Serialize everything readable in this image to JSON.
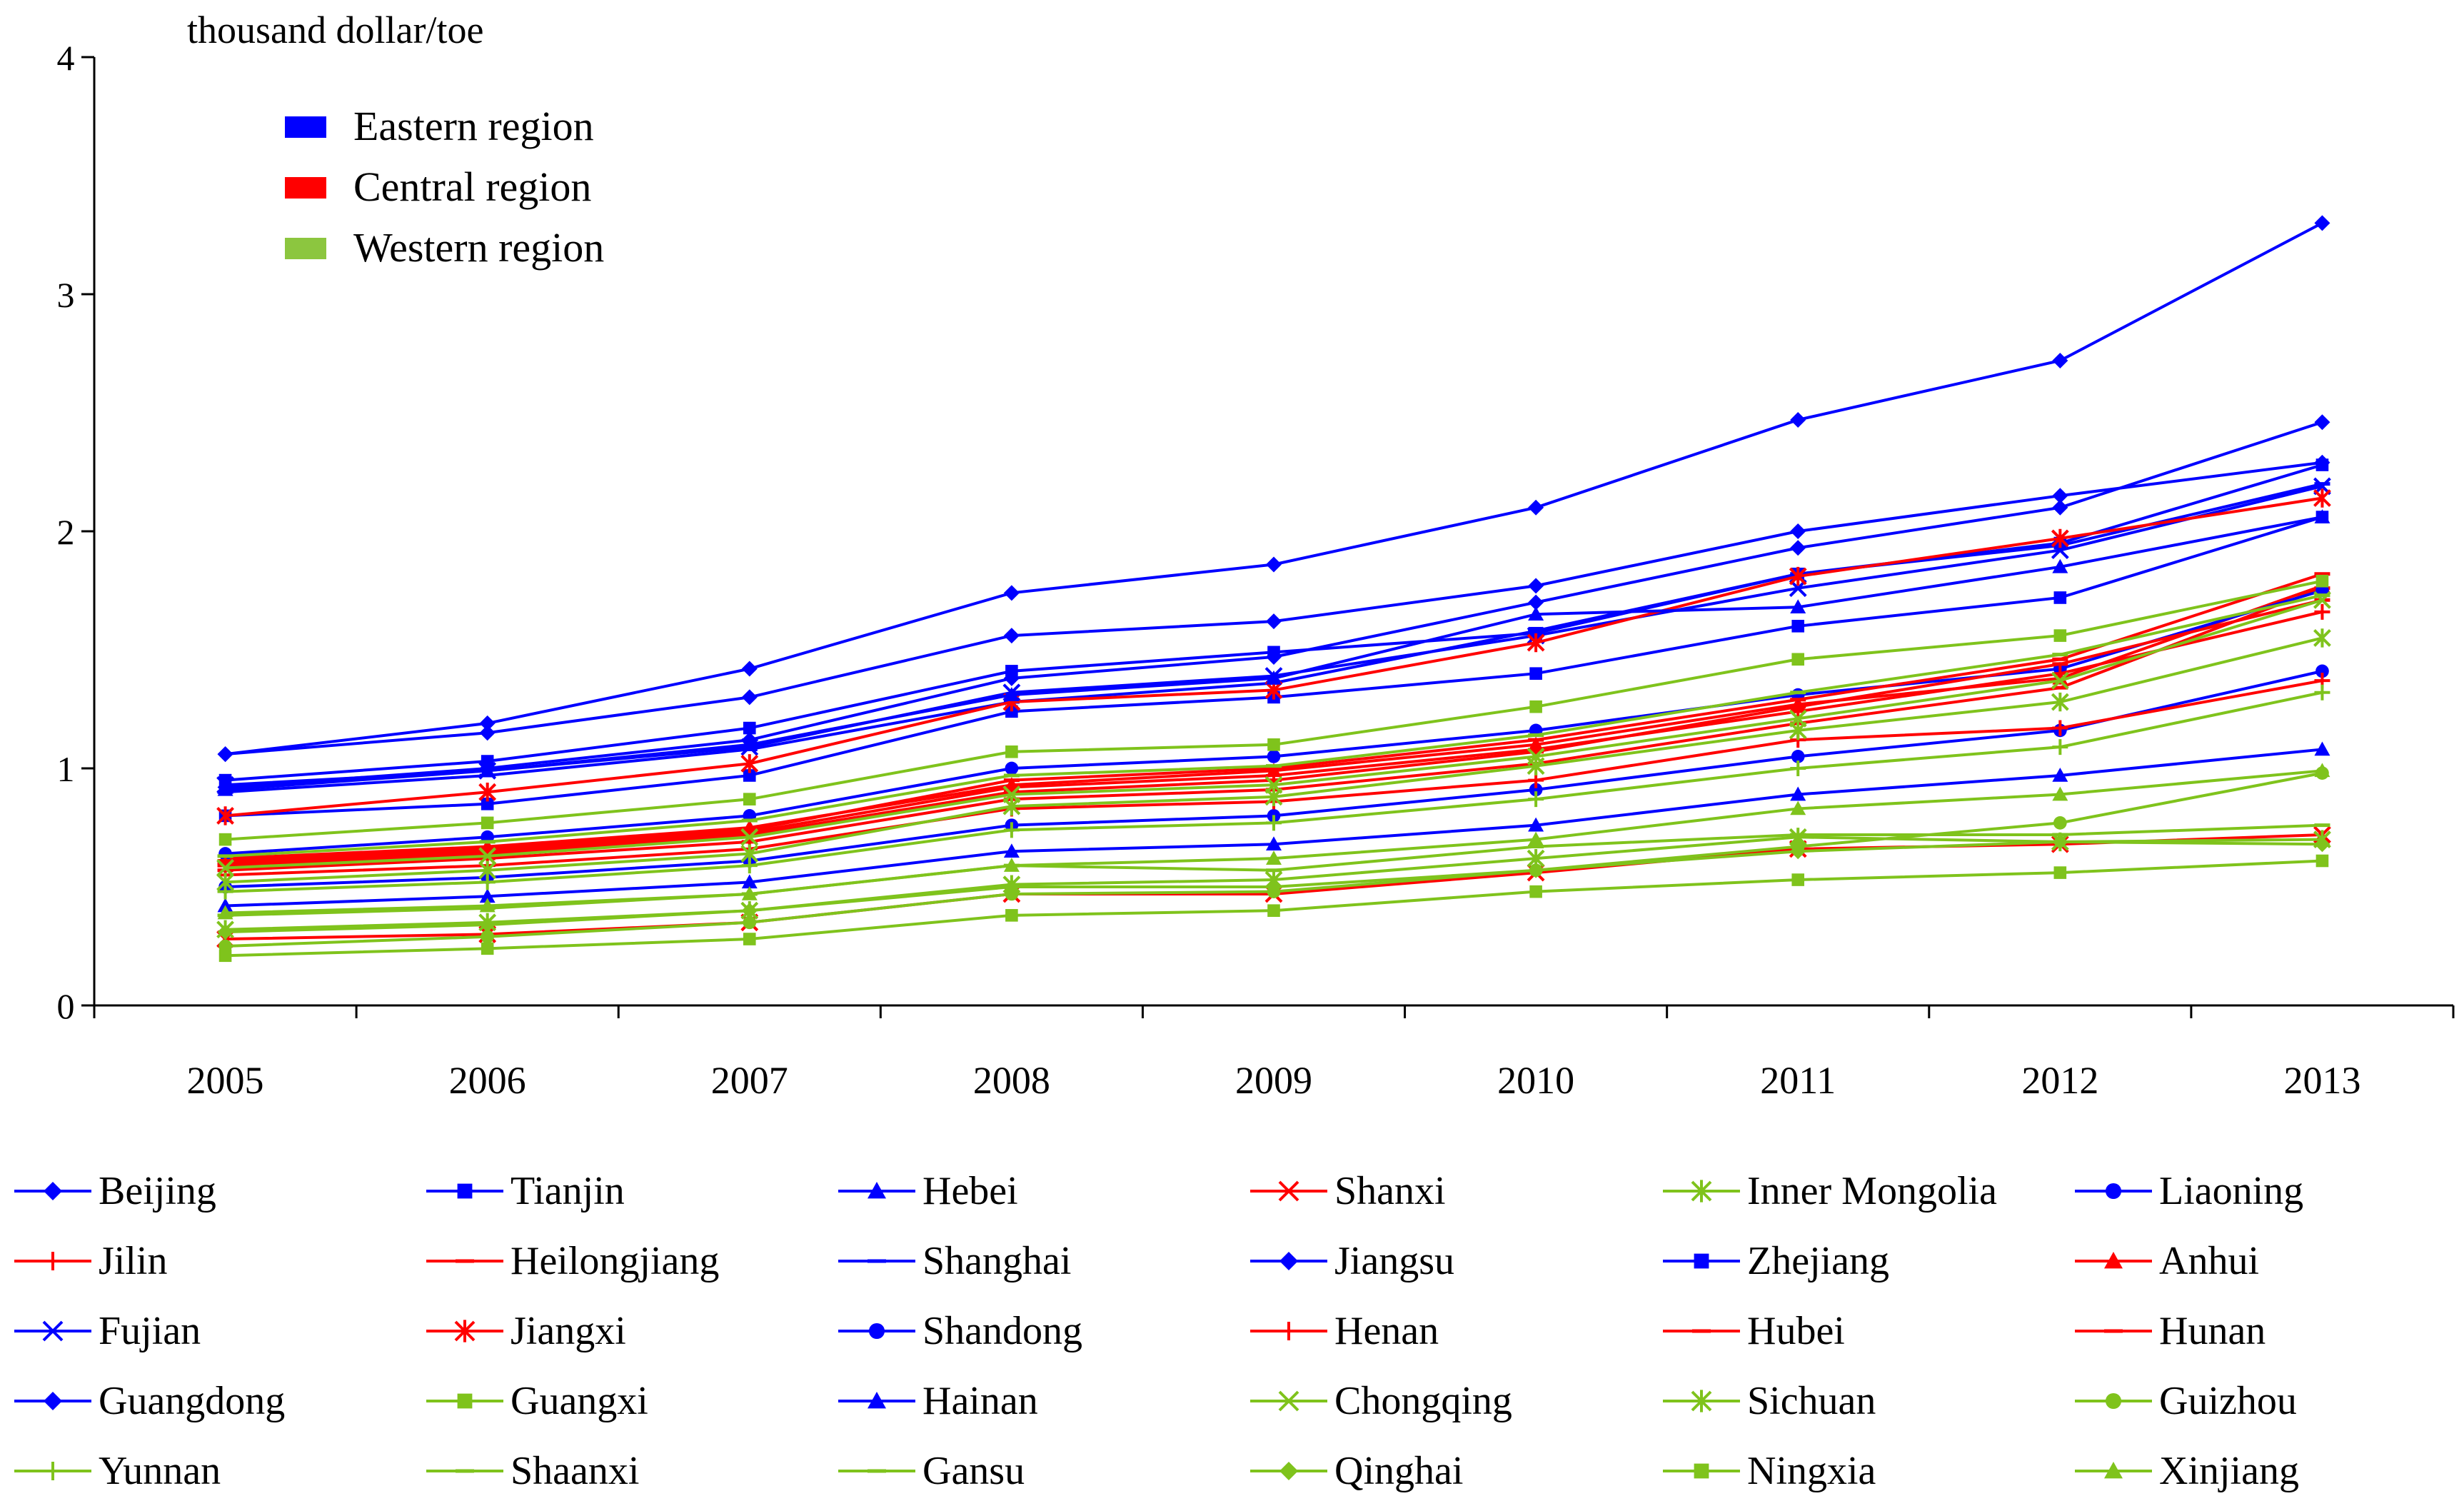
{
  "chart_data": {
    "type": "line",
    "ylabel": "thousand dollar/toe",
    "xlabel": "",
    "ylim": [
      0,
      4
    ],
    "yticks": [
      0,
      1,
      2,
      3,
      4
    ],
    "ytick_labels": [
      "0",
      "1",
      "2",
      "3",
      "4"
    ],
    "categories": [
      "2005",
      "2006",
      "2007",
      "2008",
      "2009",
      "2010",
      "2011",
      "2012",
      "2013"
    ],
    "region_legend": [
      {
        "label": "Eastern region",
        "color": "#0000ff"
      },
      {
        "label": "Central region",
        "color": "#ff0000"
      },
      {
        "label": "Western region",
        "color": "#8cc63f"
      }
    ],
    "colors": {
      "Eastern": "#0000ff",
      "Central": "#ff0000",
      "Western": "#7fc31c"
    },
    "series": [
      {
        "name": "Beijing",
        "region": "Eastern",
        "marker": "diamond",
        "values": [
          1.06,
          1.19,
          1.42,
          1.74,
          1.86,
          2.1,
          2.47,
          2.72,
          3.3
        ]
      },
      {
        "name": "Tianjin",
        "region": "Eastern",
        "marker": "square",
        "values": [
          0.95,
          1.03,
          1.17,
          1.41,
          1.49,
          1.57,
          1.82,
          1.95,
          2.28
        ]
      },
      {
        "name": "Hebei",
        "region": "Eastern",
        "marker": "triangle",
        "values": [
          0.42,
          0.46,
          0.52,
          0.65,
          0.68,
          0.76,
          0.89,
          0.97,
          1.08
        ]
      },
      {
        "name": "Shanxi",
        "region": "Central",
        "marker": "x",
        "values": [
          0.28,
          0.3,
          0.35,
          0.47,
          0.47,
          0.56,
          0.66,
          0.68,
          0.72
        ]
      },
      {
        "name": "Inner Mongolia",
        "region": "Western",
        "marker": "asterisk",
        "values": [
          0.32,
          0.35,
          0.4,
          0.51,
          0.53,
          0.62,
          0.71,
          0.69,
          0.7
        ]
      },
      {
        "name": "Liaoning",
        "region": "Eastern",
        "marker": "circle",
        "values": [
          0.5,
          0.54,
          0.61,
          0.76,
          0.8,
          0.91,
          1.05,
          1.16,
          1.41
        ]
      },
      {
        "name": "Jilin",
        "region": "Central",
        "marker": "plus",
        "values": [
          0.55,
          0.59,
          0.66,
          0.83,
          0.86,
          0.95,
          1.12,
          1.17,
          1.37
        ]
      },
      {
        "name": "Heilongjiang",
        "region": "Central",
        "marker": "dash",
        "values": [
          0.57,
          0.62,
          0.69,
          0.87,
          0.91,
          1.02,
          1.19,
          1.34,
          1.76
        ]
      },
      {
        "name": "Shanghai",
        "region": "Eastern",
        "marker": "dash",
        "values": [
          0.9,
          0.97,
          1.08,
          1.28,
          1.36,
          1.58,
          1.82,
          1.94,
          2.2
        ]
      },
      {
        "name": "Jiangsu",
        "region": "Eastern",
        "marker": "diamond",
        "values": [
          0.92,
          1.0,
          1.12,
          1.38,
          1.47,
          1.7,
          1.93,
          2.1,
          2.46
        ]
      },
      {
        "name": "Zhejiang",
        "region": "Eastern",
        "marker": "square",
        "values": [
          0.8,
          0.85,
          0.97,
          1.24,
          1.3,
          1.4,
          1.6,
          1.72,
          2.06
        ]
      },
      {
        "name": "Anhui",
        "region": "Central",
        "marker": "triangle",
        "values": [
          0.62,
          0.67,
          0.75,
          0.93,
          0.99,
          1.1,
          1.27,
          1.38,
          1.77
        ]
      },
      {
        "name": "Fujian",
        "region": "Eastern",
        "marker": "x",
        "values": [
          0.93,
          0.99,
          1.09,
          1.32,
          1.39,
          1.56,
          1.76,
          1.92,
          2.19
        ]
      },
      {
        "name": "Jiangxi",
        "region": "Central",
        "marker": "asterisk",
        "values": [
          0.8,
          0.9,
          1.02,
          1.28,
          1.33,
          1.53,
          1.81,
          1.97,
          2.14
        ]
      },
      {
        "name": "Shandong",
        "region": "Eastern",
        "marker": "circle",
        "values": [
          0.64,
          0.71,
          0.8,
          1.0,
          1.05,
          1.16,
          1.31,
          1.42,
          1.75
        ]
      },
      {
        "name": "Henan",
        "region": "Central",
        "marker": "plus",
        "values": [
          0.6,
          0.65,
          0.73,
          0.92,
          0.97,
          1.08,
          1.24,
          1.4,
          1.66
        ]
      },
      {
        "name": "Hubei",
        "region": "Central",
        "marker": "dash",
        "values": [
          0.59,
          0.64,
          0.72,
          0.9,
          0.95,
          1.07,
          1.26,
          1.44,
          1.71
        ]
      },
      {
        "name": "Hunan",
        "region": "Central",
        "marker": "dash",
        "values": [
          0.61,
          0.66,
          0.74,
          0.95,
          1.0,
          1.12,
          1.29,
          1.46,
          1.82
        ]
      },
      {
        "name": "Guangdong",
        "region": "Eastern",
        "marker": "diamond",
        "values": [
          1.06,
          1.15,
          1.3,
          1.56,
          1.62,
          1.77,
          2.0,
          2.15,
          2.29
        ]
      },
      {
        "name": "Guangxi",
        "region": "Western",
        "marker": "square",
        "values": [
          0.7,
          0.77,
          0.87,
          1.07,
          1.1,
          1.26,
          1.46,
          1.56,
          1.79
        ]
      },
      {
        "name": "Hainan",
        "region": "Eastern",
        "marker": "triangle",
        "values": [
          0.91,
          0.99,
          1.1,
          1.31,
          1.38,
          1.65,
          1.68,
          1.85,
          2.06
        ]
      },
      {
        "name": "Chongqing",
        "region": "Western",
        "marker": "x",
        "values": [
          0.58,
          0.63,
          0.71,
          0.89,
          0.93,
          1.05,
          1.21,
          1.37,
          1.71
        ]
      },
      {
        "name": "Sichuan",
        "region": "Western",
        "marker": "asterisk",
        "values": [
          0.52,
          0.57,
          0.64,
          0.84,
          0.88,
          1.01,
          1.16,
          1.28,
          1.55
        ]
      },
      {
        "name": "Guizhou",
        "region": "Western",
        "marker": "circle",
        "values": [
          0.25,
          0.29,
          0.35,
          0.47,
          0.48,
          0.57,
          0.67,
          0.77,
          0.98
        ]
      },
      {
        "name": "Yunnan",
        "region": "Western",
        "marker": "plus",
        "values": [
          0.48,
          0.52,
          0.59,
          0.74,
          0.77,
          0.87,
          1.0,
          1.09,
          1.32
        ]
      },
      {
        "name": "Shaanxi",
        "region": "Western",
        "marker": "dash",
        "values": [
          0.63,
          0.69,
          0.78,
          0.97,
          1.01,
          1.14,
          1.32,
          1.48,
          1.73
        ]
      },
      {
        "name": "Gansu",
        "region": "Western",
        "marker": "dash",
        "values": [
          0.38,
          0.41,
          0.47,
          0.59,
          0.57,
          0.67,
          0.72,
          0.72,
          0.76
        ]
      },
      {
        "name": "Qinghai",
        "region": "Western",
        "marker": "diamond",
        "values": [
          0.31,
          0.34,
          0.4,
          0.5,
          0.5,
          0.57,
          0.65,
          0.69,
          0.68
        ]
      },
      {
        "name": "Ningxia",
        "region": "Western",
        "marker": "square",
        "values": [
          0.21,
          0.24,
          0.28,
          0.38,
          0.4,
          0.48,
          0.53,
          0.56,
          0.61
        ]
      },
      {
        "name": "Xinjiang",
        "region": "Western",
        "marker": "triangle",
        "values": [
          0.39,
          0.42,
          0.47,
          0.59,
          0.62,
          0.7,
          0.83,
          0.89,
          0.99
        ]
      }
    ]
  }
}
